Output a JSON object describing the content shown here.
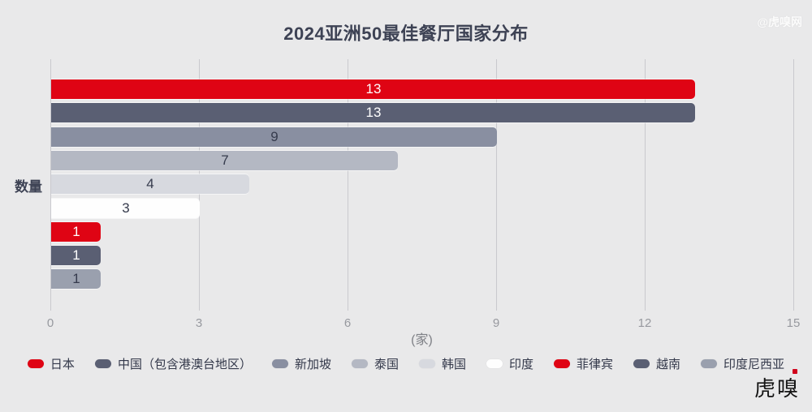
{
  "title": "2024亚洲50最佳餐厅国家分布",
  "watermark": "@虎嗅网",
  "logo_text": "虎嗅",
  "axis": {
    "y_label": "数量",
    "x_unit": "(家)"
  },
  "colors": {
    "background": "#E9E9EA",
    "gridline": "#C9C9CE",
    "title_text": "#3D4254",
    "tick_text": "#97999F",
    "accent_red": "#DF0414",
    "dark_slate": "#5A5F73"
  },
  "chart_data": {
    "type": "bar",
    "orientation": "horizontal",
    "title": "2024亚洲50最佳餐厅国家分布",
    "categories": [
      "日本",
      "中国（包含港澳台地区）",
      "新加坡",
      "泰国",
      "韩国",
      "印度",
      "菲律宾",
      "越南",
      "印度尼西亚"
    ],
    "values": [
      13,
      13,
      9,
      7,
      4,
      3,
      1,
      1,
      1
    ],
    "bar_colors": [
      "#DF0414",
      "#5A5F73",
      "#898FA1",
      "#B4B8C3",
      "#D7D9DF",
      "#FEFEFE",
      "#DF0414",
      "#5A5F73",
      "#9AA0AE"
    ],
    "value_label_colors": [
      "#FFFFFF",
      "#FFFFFF",
      "#363B4D",
      "#363B4D",
      "#363B4D",
      "#363B4D",
      "#FFFFFF",
      "#FFFFFF",
      "#363B4D"
    ],
    "xlabel": "(家)",
    "ylabel": "数量",
    "xlim": [
      0,
      15
    ],
    "x_ticks": [
      0,
      3,
      6,
      9,
      12,
      15
    ],
    "grid": "vertical-only",
    "legend_position": "bottom",
    "value_labels": "centered-in-bar"
  },
  "legend": {
    "items": [
      {
        "label": "日本",
        "color": "#DF0414"
      },
      {
        "label": "中国（包含港澳台地区）",
        "color": "#5A5F73"
      },
      {
        "label": "新加坡",
        "color": "#898FA1"
      },
      {
        "label": "泰国",
        "color": "#B4B8C3"
      },
      {
        "label": "韩国",
        "color": "#D7D9DF"
      },
      {
        "label": "印度",
        "color": "#FEFEFE"
      },
      {
        "label": "菲律宾",
        "color": "#DF0414"
      },
      {
        "label": "越南",
        "color": "#5A5F73"
      },
      {
        "label": "印度尼西亚",
        "color": "#9AA0AE"
      }
    ]
  }
}
